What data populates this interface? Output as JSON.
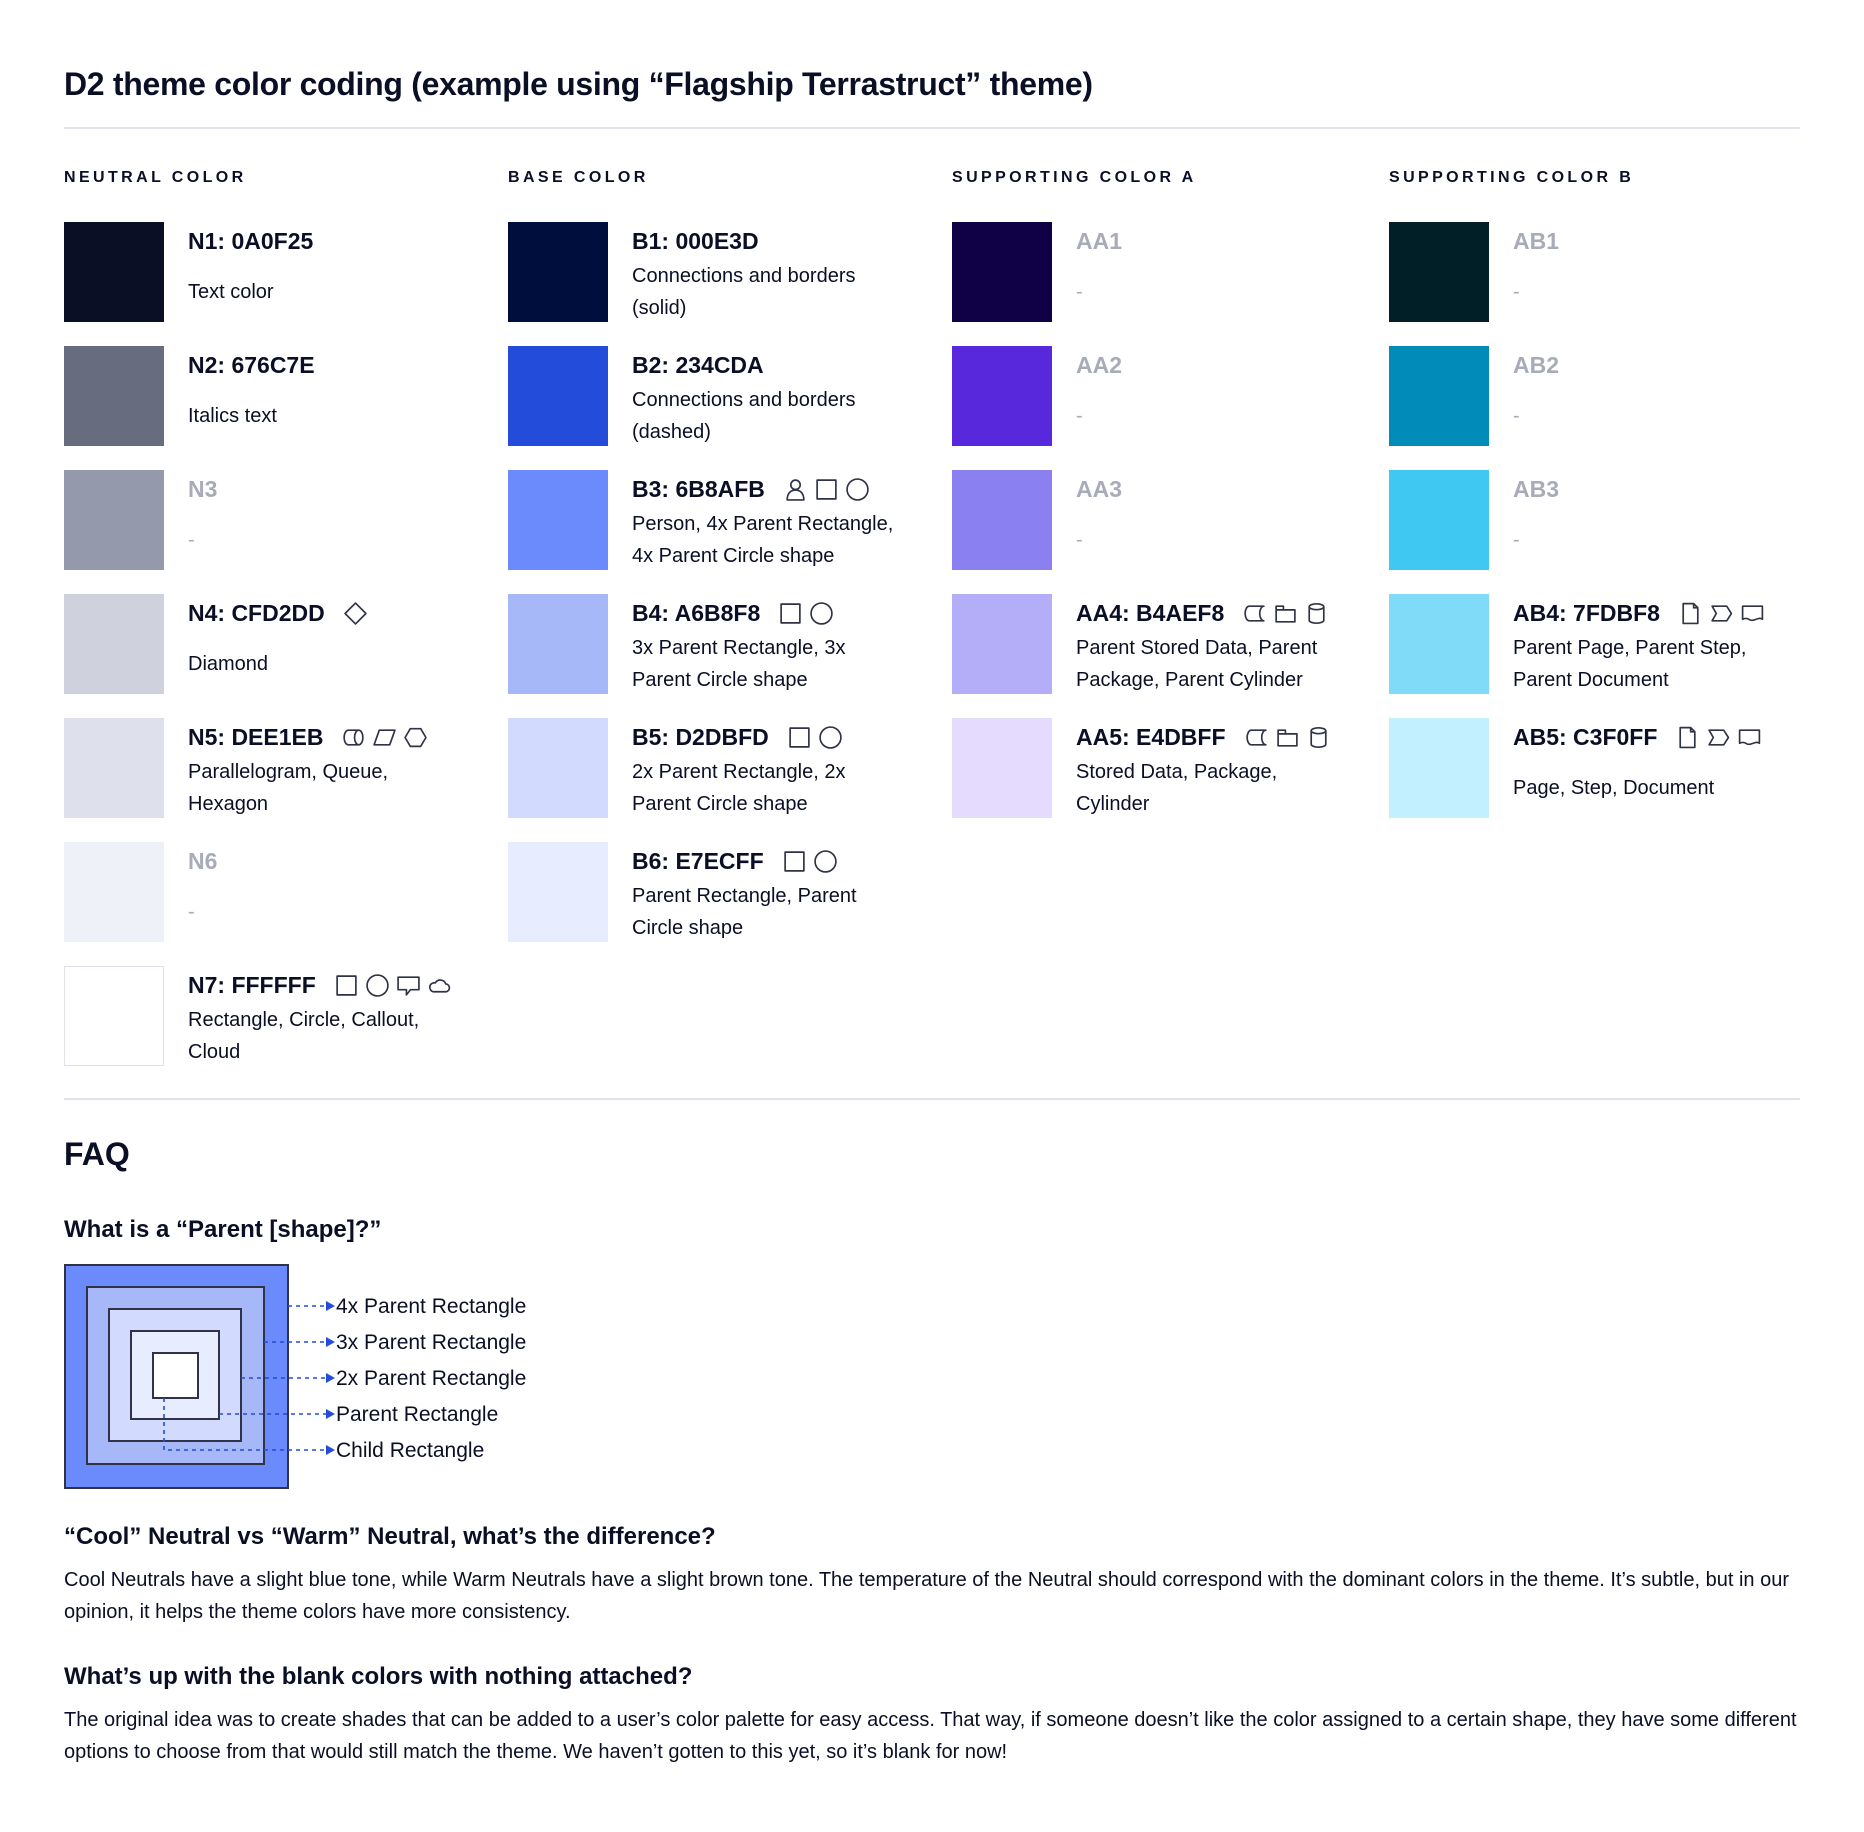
{
  "title": "D2 theme color coding (example using “Flagship Terrastruct” theme)",
  "colors": {
    "text": "#0A0F25",
    "muted": "#A8ABB8",
    "rule": "#E0E3EB",
    "icon_stroke": "#2F3345",
    "arrow": "#234CDA"
  },
  "columns": [
    {
      "heading": "NEUTRAL COLOR",
      "rows": [
        {
          "label": "N1: 0A0F25",
          "swatch": "#0A0F25",
          "muted": false,
          "icons": [],
          "desc": [
            "Text color"
          ]
        },
        {
          "label": "N2: 676C7E",
          "swatch": "#676C7E",
          "muted": false,
          "icons": [],
          "desc": [
            "Italics text"
          ]
        },
        {
          "label": "N3",
          "swatch": "#9499AB",
          "muted": true,
          "icons": [],
          "desc": [
            "-"
          ]
        },
        {
          "label": "N4: CFD2DD",
          "swatch": "#CFD2DD",
          "muted": false,
          "icons": [
            "diamond"
          ],
          "desc": [
            "Diamond"
          ]
        },
        {
          "label": "N5: DEE1EB",
          "swatch": "#DEE1EB",
          "muted": false,
          "icons": [
            "queue",
            "parallelogram",
            "hexagon"
          ],
          "desc": [
            "Parallelogram, Queue,",
            "Hexagon"
          ]
        },
        {
          "label": "N6",
          "swatch": "#EEF1F8",
          "muted": true,
          "icons": [],
          "desc": [
            "-"
          ]
        },
        {
          "label": "N7: FFFFFF",
          "swatch": "#FFFFFF",
          "muted": false,
          "icons": [
            "rectangle",
            "circle",
            "callout",
            "cloud"
          ],
          "desc": [
            "Rectangle, Circle, Callout,",
            "Cloud"
          ]
        }
      ]
    },
    {
      "heading": "BASE COLOR",
      "rows": [
        {
          "label": "B1: 000E3D",
          "swatch": "#000E3D",
          "muted": false,
          "icons": [],
          "desc": [
            "Connections and borders",
            "(solid)"
          ]
        },
        {
          "label": "B2: 234CDA",
          "swatch": "#234CDA",
          "muted": false,
          "icons": [],
          "desc": [
            "Connections and borders",
            "(dashed)"
          ]
        },
        {
          "label": "B3: 6B8AFB",
          "swatch": "#6B8AFB",
          "muted": false,
          "icons": [
            "person",
            "rectangle",
            "circle"
          ],
          "desc": [
            "Person, 4x Parent Rectangle,",
            "4x Parent Circle shape"
          ]
        },
        {
          "label": "B4: A6B8F8",
          "swatch": "#A6B8F8",
          "muted": false,
          "icons": [
            "rectangle",
            "circle"
          ],
          "desc": [
            "3x Parent Rectangle, 3x",
            "Parent Circle shape"
          ]
        },
        {
          "label": "B5: D2DBFD",
          "swatch": "#D2DBFD",
          "muted": false,
          "icons": [
            "rectangle",
            "circle"
          ],
          "desc": [
            "2x Parent Rectangle, 2x",
            "Parent Circle shape"
          ]
        },
        {
          "label": "B6: E7ECFF",
          "swatch": "#E7ECFF",
          "muted": false,
          "icons": [
            "rectangle",
            "circle"
          ],
          "desc": [
            "Parent Rectangle, Parent",
            "Circle shape"
          ]
        }
      ]
    },
    {
      "heading": "SUPPORTING COLOR A",
      "rows": [
        {
          "label": "AA1",
          "swatch": "#100045",
          "muted": true,
          "icons": [],
          "desc": [
            "-"
          ]
        },
        {
          "label": "AA2",
          "swatch": "#5829DC",
          "muted": true,
          "icons": [],
          "desc": [
            "-"
          ]
        },
        {
          "label": "AA3",
          "swatch": "#8B80F2",
          "muted": true,
          "icons": [],
          "desc": [
            "-"
          ]
        },
        {
          "label": "AA4: B4AEF8",
          "swatch": "#B4AEF8",
          "muted": false,
          "icons": [
            "stored-data",
            "package",
            "cylinder"
          ],
          "desc": [
            "Parent Stored Data, Parent",
            "Package,  Parent Cylinder"
          ]
        },
        {
          "label": "AA5: E4DBFF",
          "swatch": "#E4DBFF",
          "muted": false,
          "icons": [
            "stored-data",
            "package",
            "cylinder"
          ],
          "desc": [
            "Stored Data, Package,",
            "Cylinder"
          ]
        }
      ]
    },
    {
      "heading": "SUPPORTING COLOR B",
      "rows": [
        {
          "label": "AB1",
          "swatch": "#011F27",
          "muted": true,
          "icons": [],
          "desc": [
            "-"
          ]
        },
        {
          "label": "AB2",
          "swatch": "#008BB8",
          "muted": true,
          "icons": [],
          "desc": [
            "-"
          ]
        },
        {
          "label": "AB3",
          "swatch": "#3FC8F1",
          "muted": true,
          "icons": [],
          "desc": [
            "-"
          ]
        },
        {
          "label": "AB4: 7FDBF8",
          "swatch": "#7FDBF8",
          "muted": false,
          "icons": [
            "page",
            "step",
            "document"
          ],
          "desc": [
            "Parent Page, Parent Step,",
            "Parent Document"
          ]
        },
        {
          "label": "AB5: C3F0FF",
          "swatch": "#C3F0FF",
          "muted": false,
          "icons": [
            "page",
            "step",
            "document"
          ],
          "desc": [
            "Page, Step, Document"
          ]
        }
      ]
    }
  ],
  "faq": {
    "title": "FAQ",
    "q1": "What is a “Parent [shape]?”",
    "diagram": {
      "fills": [
        "#6B8AFB",
        "#A6B8F8",
        "#D2DBFD",
        "#E7ECFF",
        "#FFFFFF"
      ],
      "labels": [
        "4x Parent Rectangle",
        "3x Parent Rectangle",
        "2x Parent Rectangle",
        "Parent Rectangle",
        "Child Rectangle"
      ]
    },
    "q2": "“Cool” Neutral vs “Warm” Neutral, what’s the difference?",
    "a2": "Cool Neutrals have a slight blue tone, while Warm Neutrals have a slight brown tone. The temperature of the Neutral should correspond with the dominant colors in the theme. It’s subtle, but in our opinion, it helps the theme colors have more consistency.",
    "q3": "What’s up with the blank colors with nothing attached?",
    "a3": "The original idea was to create shades that can be added to a user’s color palette for easy access. That way, if someone doesn’t like the color assigned to a certain shape, they have some different options to choose from that would still match the theme. We haven’t gotten to this yet, so it’s blank for now!"
  }
}
